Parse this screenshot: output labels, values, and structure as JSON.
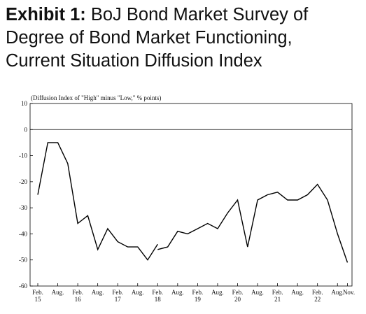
{
  "title": {
    "exhibit": "Exhibit 1:",
    "line1": "BoJ Bond Market Survey of",
    "line2": "Degree of Bond Market Functioning,",
    "line3": "Current Situation Diffusion Index"
  },
  "chart_data": {
    "type": "line",
    "ylabel": "(Diffusion Index of \"High\" minus \"Low,\" % points)",
    "ylim": [
      -60,
      10
    ],
    "yticks": [
      "10",
      "0",
      "-10",
      "-20",
      "-30",
      "-40",
      "-50",
      "-60"
    ],
    "xticks": [
      {
        "m": "Feb.",
        "y": "15"
      },
      {
        "m": "Aug.",
        "y": ""
      },
      {
        "m": "Feb.",
        "y": "16"
      },
      {
        "m": "Aug.",
        "y": ""
      },
      {
        "m": "Feb.",
        "y": "17"
      },
      {
        "m": "Aug.",
        "y": ""
      },
      {
        "m": "Feb.",
        "y": "18"
      },
      {
        "m": "Aug.",
        "y": ""
      },
      {
        "m": "Feb.",
        "y": "19"
      },
      {
        "m": "Aug.",
        "y": ""
      },
      {
        "m": "Feb.",
        "y": "20"
      },
      {
        "m": "Aug.",
        "y": ""
      },
      {
        "m": "Feb.",
        "y": "21"
      },
      {
        "m": "Aug.",
        "y": ""
      },
      {
        "m": "Feb.",
        "y": "22"
      },
      {
        "m": "Aug.",
        "y": ""
      },
      {
        "m": "Nov.",
        "y": ""
      }
    ],
    "segments": [
      [
        {
          "x": "2015-02",
          "y": -25
        },
        {
          "x": "2015-05",
          "y": -5
        },
        {
          "x": "2015-08",
          "y": -5
        },
        {
          "x": "2015-11",
          "y": -13
        },
        {
          "x": "2016-02",
          "y": -36
        },
        {
          "x": "2016-05",
          "y": -33
        },
        {
          "x": "2016-08",
          "y": -46
        },
        {
          "x": "2016-11",
          "y": -38
        },
        {
          "x": "2017-02",
          "y": -43
        },
        {
          "x": "2017-05",
          "y": -45
        },
        {
          "x": "2017-08",
          "y": -45
        },
        {
          "x": "2017-11",
          "y": -50
        },
        {
          "x": "2018-02",
          "y": -44
        }
      ],
      [
        {
          "x": "2018-02",
          "y": -46
        },
        {
          "x": "2018-05",
          "y": -45
        },
        {
          "x": "2018-08",
          "y": -39
        },
        {
          "x": "2018-11",
          "y": -40
        },
        {
          "x": "2019-02",
          "y": -38
        },
        {
          "x": "2019-05",
          "y": -36
        },
        {
          "x": "2019-08",
          "y": -38
        },
        {
          "x": "2019-11",
          "y": -32
        },
        {
          "x": "2020-02",
          "y": -27
        },
        {
          "x": "2020-05",
          "y": -45
        },
        {
          "x": "2020-08",
          "y": -27
        },
        {
          "x": "2020-11",
          "y": -25
        },
        {
          "x": "2021-02",
          "y": -24
        },
        {
          "x": "2021-05",
          "y": -27
        },
        {
          "x": "2021-08",
          "y": -27
        },
        {
          "x": "2021-11",
          "y": -25
        },
        {
          "x": "2022-02",
          "y": -21
        },
        {
          "x": "2022-05",
          "y": -27
        },
        {
          "x": "2022-08",
          "y": -40
        },
        {
          "x": "2022-11",
          "y": -51
        }
      ]
    ],
    "zero_line": true,
    "grid": false,
    "line_color": "#000000"
  }
}
